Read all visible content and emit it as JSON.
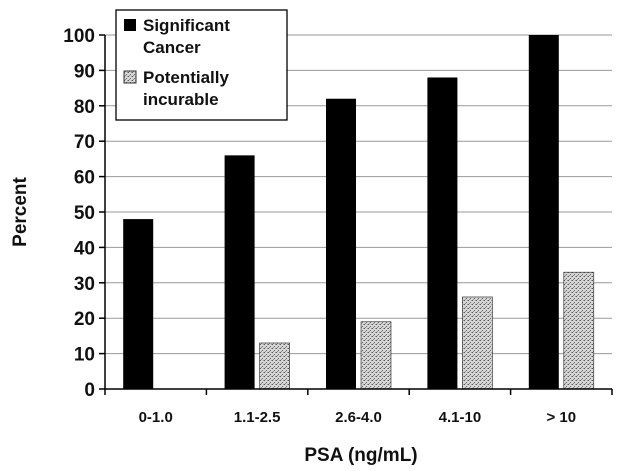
{
  "chart_data": {
    "type": "bar",
    "title": "",
    "xlabel": "PSA (ng/mL)",
    "ylabel": "Percent",
    "categories": [
      "0-1.0",
      "1.1-2.5",
      "2.6-4.0",
      "4.1-10",
      "> 10"
    ],
    "yticks": [
      "0",
      "10",
      "20",
      "30",
      "40",
      "50",
      "60",
      "70",
      "80",
      "90",
      "100"
    ],
    "ylim": [
      0,
      100
    ],
    "grid": true,
    "legend_position": "top-left",
    "series": [
      {
        "name": "Significant Cancer",
        "values": [
          48,
          66,
          82,
          88,
          100
        ],
        "color": "#000000",
        "pattern": "solid"
      },
      {
        "name": "Potentially incurable",
        "values": [
          0,
          13,
          19,
          26,
          33
        ],
        "color": "#bdbdbd",
        "pattern": "stipple"
      }
    ],
    "legend_lines": [
      [
        "Significant",
        "Cancer"
      ],
      [
        "Potentially",
        "incurable"
      ]
    ]
  }
}
